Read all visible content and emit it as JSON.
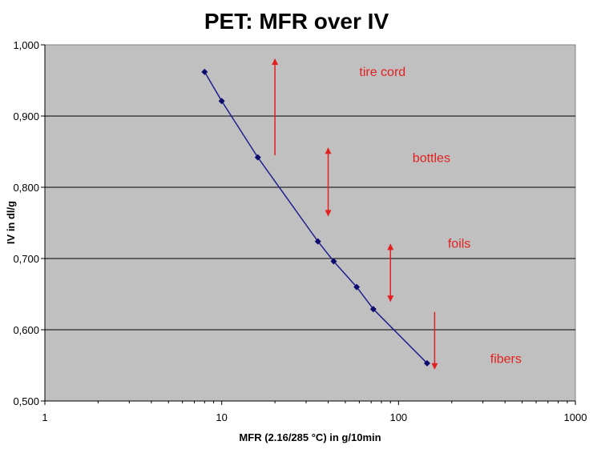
{
  "chart_data": {
    "type": "scatter",
    "title": "PET: MFR over IV",
    "xlabel": "MFR (2.16/285 °C) in g/10min",
    "ylabel": "IV in dl/g",
    "x_scale": "log",
    "xlim": [
      1,
      1000
    ],
    "ylim": [
      0.5,
      1.0
    ],
    "x_ticks": [
      1,
      10,
      100,
      1000
    ],
    "x_tick_labels": [
      "1",
      "10",
      "100",
      "1000"
    ],
    "y_ticks": [
      0.5,
      0.6,
      0.7,
      0.8,
      0.9,
      1.0
    ],
    "y_tick_labels": [
      "0,500",
      "0,600",
      "0,700",
      "0,800",
      "0,900",
      "1,000"
    ],
    "grid": true,
    "legend": "none",
    "colors": {
      "plot_background": "#c0c0c0",
      "series_line": "#1f1f8f",
      "marker": "#0c0c6e",
      "annotation": "#e32020",
      "grid": "#000000"
    },
    "series": [
      {
        "x": [
          8,
          10,
          16,
          35,
          43,
          58,
          72,
          145
        ],
        "y": [
          0.962,
          0.921,
          0.842,
          0.724,
          0.696,
          0.66,
          0.629,
          0.553
        ]
      }
    ],
    "annotations": [
      {
        "text": "tire cord",
        "x": 60,
        "y": 0.963,
        "arrow": {
          "x": 20,
          "from": 0.845,
          "to": 0.98,
          "heads": "up"
        }
      },
      {
        "text": "bottles",
        "x": 120,
        "y": 0.842,
        "arrow": {
          "x": 40,
          "from": 0.76,
          "to": 0.855,
          "heads": "both"
        }
      },
      {
        "text": "foils",
        "x": 190,
        "y": 0.722,
        "arrow": {
          "x": 90,
          "from": 0.64,
          "to": 0.72,
          "heads": "both"
        }
      },
      {
        "text": "fibers",
        "x": 330,
        "y": 0.56,
        "arrow": {
          "x": 160,
          "from": 0.545,
          "to": 0.625,
          "heads": "down"
        }
      }
    ]
  }
}
